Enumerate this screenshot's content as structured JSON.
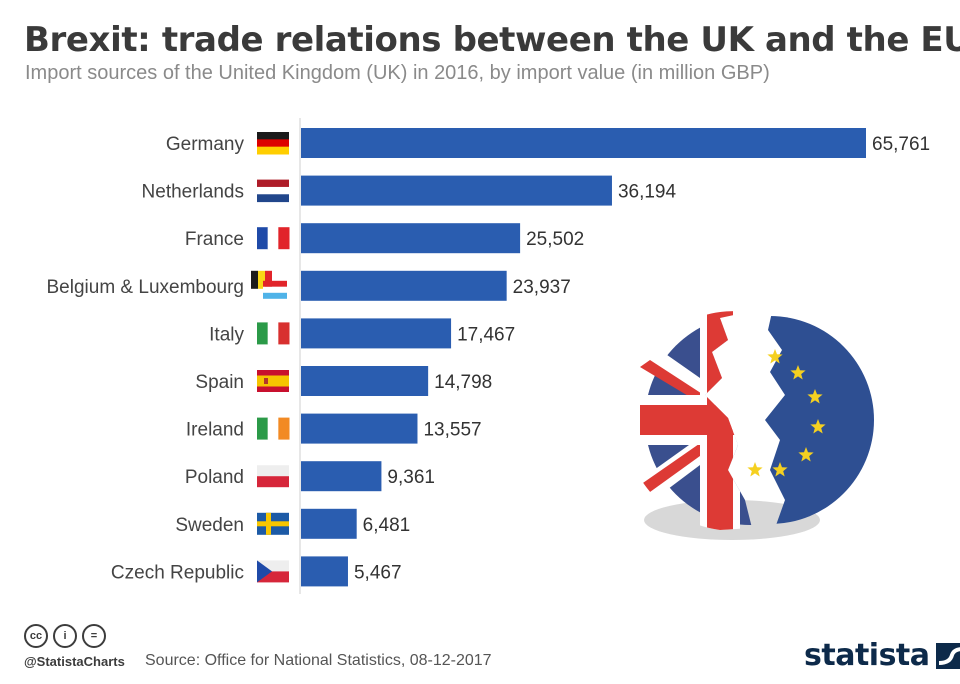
{
  "header": {
    "title": "Brexit: trade relations between the UK and the EU",
    "subtitle": "Import sources of the United Kingdom (UK) in 2016, by import value (in million GBP)"
  },
  "chart_data": {
    "type": "bar",
    "orientation": "horizontal",
    "categories": [
      "Germany",
      "Netherlands",
      "France",
      "Belgium & Luxembourg",
      "Italy",
      "Spain",
      "Ireland",
      "Poland",
      "Sweden",
      "Czech Republic"
    ],
    "values": [
      65761,
      36194,
      25502,
      23937,
      17467,
      14798,
      13557,
      9361,
      6481,
      5467
    ],
    "value_labels": [
      "65,761",
      "36,194",
      "25,502",
      "23,937",
      "17,467",
      "14,798",
      "13,557",
      "9,361",
      "6,481",
      "5,467"
    ],
    "flags": [
      "germany-flag",
      "netherlands-flag",
      "france-flag",
      "belgium-luxembourg-flag",
      "italy-flag",
      "spain-flag",
      "ireland-flag",
      "poland-flag",
      "sweden-flag",
      "czech-republic-flag"
    ],
    "xlim": [
      0,
      65761
    ],
    "bar_color": "#2a5db0",
    "grid": false
  },
  "footer": {
    "handle": "@StatistaCharts",
    "source": "Source: Office for National Statistics, 08-12-2017",
    "brand": "statista",
    "license_icons": [
      "cc-icon",
      "attribution-icon",
      "no-derivatives-icon"
    ]
  },
  "illustration": {
    "name": "broken-uk-eu-flag-illustration",
    "colors": {
      "eu_blue": "#2e4f92",
      "uk_blue": "#3a4f8e",
      "uk_red": "#dd3a35",
      "star": "#f5d020"
    }
  }
}
